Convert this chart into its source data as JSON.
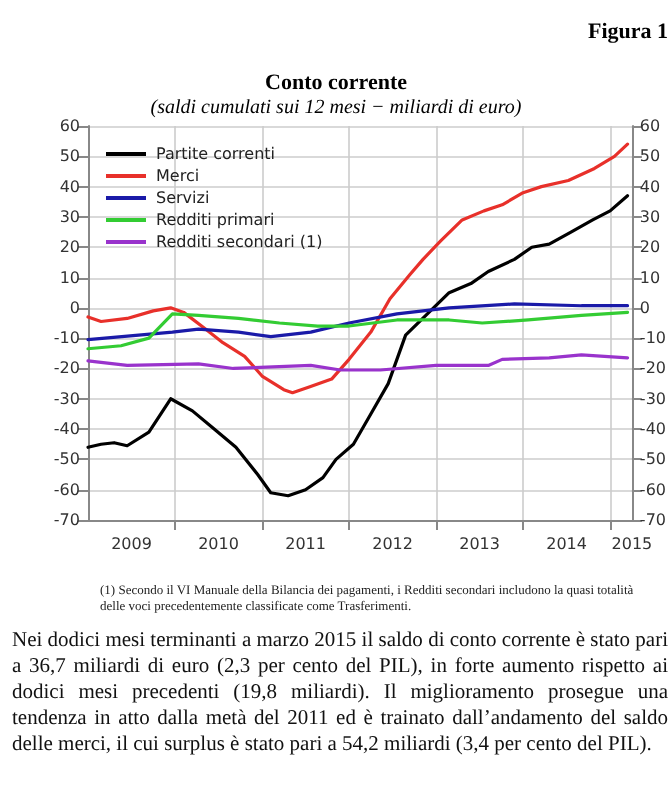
{
  "chart_data": {
    "type": "line",
    "title": "Conto corrente",
    "subtitle": "(saldi cumulati sui 12 mesi − miliardi di euro)",
    "annotations": [
      "Figura 1",
      "(1) Secondo il VI Manuale della Bilancia dei pagamenti, i Redditi secondari includono la quasi totalità delle voci precedentemente classificate come Trasferimenti.",
      "Nei dodici mesi terminanti a marzo 2015 il saldo di conto corrente è stato pari a 36,7 miliardi di euro (2,3 per cento del PIL), in forte aumento rispetto ai dodici mesi precedenti (19,8 miliardi). Il miglioramento prosegue una tendenza in atto dalla metà del 2011 ed è trainato dall’andamento del saldo delle merci, il cui surplus è stato pari a 54,2 miliardi (3,4 per cento del PIL)."
    ],
    "series": [
      {
        "name": "Partite correnti",
        "color": "#000000",
        "x": [
          2009.0,
          2009.15,
          2009.3,
          2009.45,
          2009.7,
          2009.95,
          2010.2,
          2010.45,
          2010.7,
          2010.95,
          2011.1,
          2011.3,
          2011.5,
          2011.7,
          2011.85,
          2012.05,
          2012.25,
          2012.45,
          2012.65,
          2012.9,
          2013.15,
          2013.4,
          2013.6,
          2013.9,
          2014.1,
          2014.3,
          2014.55,
          2014.8,
          2015.0,
          2015.2
        ],
        "values": [
          -46,
          -45,
          -44.5,
          -45.5,
          -41,
          -30,
          -34,
          -40,
          -46,
          -55,
          -61,
          -62,
          -60,
          -56,
          -50,
          -45,
          -35,
          -25,
          -9,
          -2,
          5,
          8,
          12,
          16,
          20,
          21,
          25,
          29,
          32,
          37
        ]
      },
      {
        "name": "Merci",
        "color": "#e8302a",
        "x": [
          2009.0,
          2009.15,
          2009.45,
          2009.75,
          2009.95,
          2010.1,
          2010.35,
          2010.55,
          2010.8,
          2011.0,
          2011.25,
          2011.35,
          2011.55,
          2011.8,
          2012.0,
          2012.25,
          2012.47,
          2012.7,
          2012.85,
          2013.05,
          2013.3,
          2013.55,
          2013.76,
          2014.0,
          2014.21,
          2014.52,
          2014.82,
          2015.05,
          2015.2
        ],
        "values": [
          -3,
          -4.5,
          -3.5,
          -1,
          0,
          -1.5,
          -7,
          -11.5,
          -16,
          -22.5,
          -27,
          -28,
          -26,
          -23.5,
          -17,
          -8,
          3,
          11,
          16,
          22,
          29,
          32,
          34,
          38,
          40,
          42,
          46,
          50,
          54
        ]
      },
      {
        "name": "Servizi",
        "color": "#1a1aa8",
        "x": [
          2009.0,
          2009.97,
          2010.27,
          2010.73,
          2011.1,
          2011.56,
          2012.0,
          2012.55,
          2013.15,
          2013.9,
          2014.67,
          2015.2
        ],
        "values": [
          -10.5,
          -8,
          -7,
          -8,
          -9.5,
          -8,
          -5,
          -2,
          0,
          1.3,
          0.7,
          0.7
        ]
      },
      {
        "name": "Redditi primari",
        "color": "#33cc33",
        "x": [
          2009.0,
          2009.38,
          2009.7,
          2009.97,
          2010.27,
          2010.73,
          2011.2,
          2011.64,
          2012.0,
          2012.55,
          2013.15,
          2013.53,
          2014.06,
          2014.67,
          2015.2
        ],
        "values": [
          -13.5,
          -12.5,
          -10,
          -2,
          -2.5,
          -3.5,
          -5,
          -6,
          -6,
          -4,
          -4,
          -5,
          -4,
          -2.5,
          -1.5
        ]
      },
      {
        "name": "Redditi secondari (1)",
        "color": "#9933cc",
        "x": [
          2009.0,
          2009.45,
          2010.27,
          2010.67,
          2011.56,
          2011.9,
          2012.36,
          2013.0,
          2013.6,
          2013.76,
          2014.3,
          2014.67,
          2015.2
        ],
        "values": [
          -17.5,
          -19,
          -18.5,
          -20,
          -19,
          -20.5,
          -20.5,
          -19,
          -19,
          -17,
          -16.5,
          -15.5,
          -16.5
        ]
      }
    ],
    "xlim": [
      2009,
      2015.25
    ],
    "xticks": [
      {
        "value": 2009.5,
        "label": "2009"
      },
      {
        "value": 2010,
        "label": null
      },
      {
        "value": 2010.5,
        "label": "2010"
      },
      {
        "value": 2011,
        "label": null
      },
      {
        "value": 2011.5,
        "label": "2011"
      },
      {
        "value": 2012,
        "label": null
      },
      {
        "value": 2012.5,
        "label": "2012"
      },
      {
        "value": 2013,
        "label": null
      },
      {
        "value": 2013.5,
        "label": "2013"
      },
      {
        "value": 2014,
        "label": null
      },
      {
        "value": 2014.5,
        "label": "2014"
      },
      {
        "value": 2015,
        "label": null
      },
      {
        "value": 2015.25,
        "label": "2015"
      }
    ],
    "ylim": [
      -70,
      60
    ],
    "yticks": [
      -70,
      -60,
      -50,
      -40,
      -30,
      -20,
      -10,
      0,
      10,
      20,
      30,
      40,
      50,
      60
    ],
    "y2lim": [
      -70,
      60
    ],
    "y2ticks": [
      -70,
      -60,
      -50,
      -40,
      -30,
      -20,
      -10,
      0,
      10,
      20,
      30,
      40,
      50,
      60
    ],
    "grid": true,
    "legend": "top left",
    "marker": "none",
    "line_style": "solid"
  }
}
